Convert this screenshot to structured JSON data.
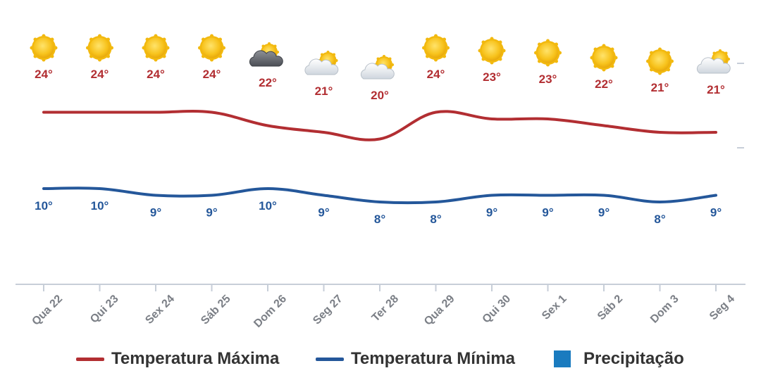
{
  "chart_data": {
    "type": "line",
    "categories": [
      "Qua 22",
      "Qui 23",
      "Sex 24",
      "Sáb 25",
      "Dom 26",
      "Seg 27",
      "Ter 28",
      "Qua 29",
      "Qui 30",
      "Sex 1",
      "Sáb 2",
      "Dom 3",
      "Seg 4"
    ],
    "series": [
      {
        "name": "Temperatura Máxima",
        "color": "#b22e32",
        "values": [
          24,
          24,
          24,
          24,
          22,
          21,
          20,
          24,
          23,
          23,
          22,
          21,
          21
        ],
        "labels": [
          "24°",
          "24°",
          "24°",
          "24°",
          "22°",
          "21°",
          "20°",
          "24°",
          "23°",
          "23°",
          "22°",
          "21°",
          "21°"
        ]
      },
      {
        "name": "Temperatura Mínima",
        "color": "#24579a",
        "values": [
          10,
          10,
          9,
          9,
          10,
          9,
          8,
          8,
          9,
          9,
          9,
          8,
          9
        ],
        "labels": [
          "10°",
          "10°",
          "9°",
          "9°",
          "10°",
          "9°",
          "8°",
          "8°",
          "9°",
          "9°",
          "9°",
          "8°",
          "9°"
        ]
      }
    ],
    "icons": [
      "sun-icon",
      "sun-icon",
      "sun-icon",
      "sun-icon",
      "storm-cloud-icon",
      "partly-cloudy-icon",
      "partly-cloudy-icon",
      "sun-icon",
      "sun-icon",
      "sun-icon",
      "sun-icon",
      "sun-icon",
      "partly-cloudy-icon"
    ],
    "legend": {
      "placement": "bottom",
      "items": [
        {
          "label": "Temperatura Máxima",
          "kind": "line",
          "color": "#b22e32"
        },
        {
          "label": "Temperatura Mínima",
          "kind": "line",
          "color": "#24579a"
        },
        {
          "label": "Precipitação",
          "kind": "square",
          "color": "#1a7bbf"
        }
      ]
    },
    "grid": false,
    "title": "",
    "xlabel": "",
    "ylabel": ""
  }
}
